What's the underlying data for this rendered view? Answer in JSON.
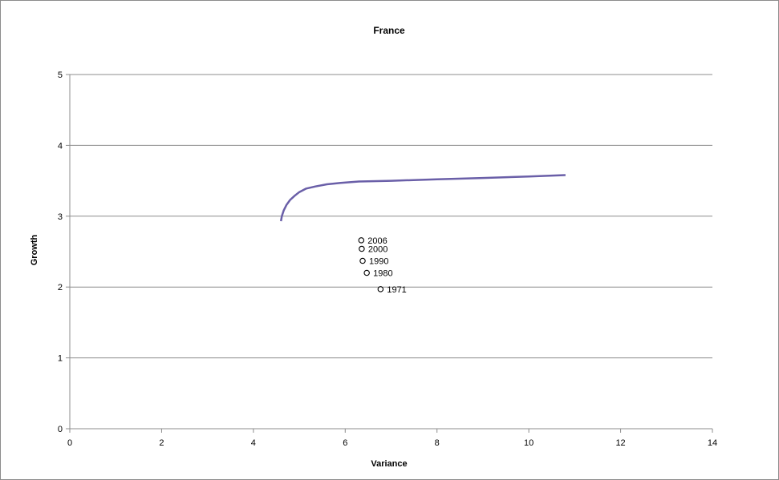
{
  "chart_data": {
    "type": "scatter",
    "title": "France",
    "xlabel": "Variance",
    "ylabel": "Growth",
    "xlim": [
      0,
      14
    ],
    "ylim": [
      0,
      5
    ],
    "x_ticks": [
      0,
      2,
      4,
      6,
      8,
      10,
      12,
      14
    ],
    "y_ticks": [
      0,
      1,
      2,
      3,
      4,
      5
    ],
    "grid": "horizontal",
    "legend": "none",
    "series": [
      {
        "type": "line",
        "color": "#6a5fa8",
        "points": [
          {
            "x": 4.6,
            "y": 2.93
          },
          {
            "x": 4.62,
            "y": 3.0
          },
          {
            "x": 4.66,
            "y": 3.08
          },
          {
            "x": 4.72,
            "y": 3.16
          },
          {
            "x": 4.8,
            "y": 3.23
          },
          {
            "x": 4.9,
            "y": 3.29
          },
          {
            "x": 5.0,
            "y": 3.34
          },
          {
            "x": 5.15,
            "y": 3.39
          },
          {
            "x": 5.35,
            "y": 3.42
          },
          {
            "x": 5.6,
            "y": 3.45
          },
          {
            "x": 5.9,
            "y": 3.47
          },
          {
            "x": 6.3,
            "y": 3.49
          },
          {
            "x": 7.0,
            "y": 3.5
          },
          {
            "x": 8.0,
            "y": 3.52
          },
          {
            "x": 9.0,
            "y": 3.54
          },
          {
            "x": 10.0,
            "y": 3.56
          },
          {
            "x": 10.8,
            "y": 3.58
          }
        ]
      },
      {
        "type": "scatter",
        "marker": "open-circle",
        "points": [
          {
            "x": 6.35,
            "y": 2.66,
            "label": "2006"
          },
          {
            "x": 6.36,
            "y": 2.54,
            "label": "2000"
          },
          {
            "x": 6.38,
            "y": 2.37,
            "label": "1990"
          },
          {
            "x": 6.47,
            "y": 2.2,
            "label": "1980"
          },
          {
            "x": 6.77,
            "y": 1.97,
            "label": "1971"
          }
        ]
      }
    ]
  }
}
